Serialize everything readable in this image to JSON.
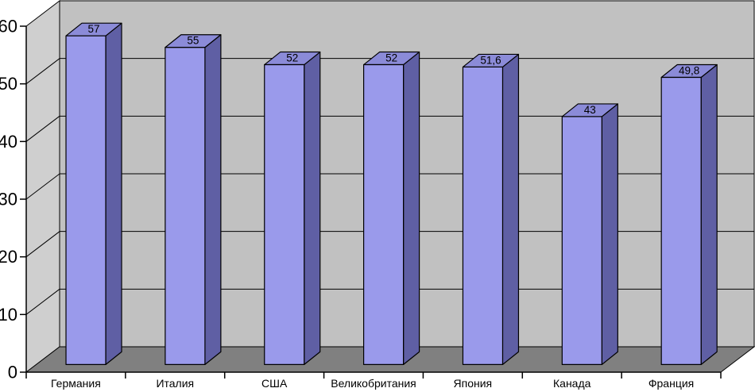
{
  "chart_data": {
    "type": "bar",
    "style": "3d-column",
    "title": "",
    "xlabel": "",
    "ylabel": "",
    "categories": [
      "Германия",
      "Италия",
      "США",
      "Великобритания",
      "Япония",
      "Канада",
      "Франция"
    ],
    "values": [
      57,
      55,
      52,
      52,
      51.6,
      43,
      49.8
    ],
    "value_labels": [
      "57",
      "55",
      "52",
      "52",
      "51,6",
      "43",
      "49,8"
    ],
    "ylim": [
      0,
      60
    ],
    "ytick_step": 10,
    "ytick_labels": [
      "0",
      "10",
      "20",
      "30",
      "40",
      "50",
      "60"
    ],
    "grid": true,
    "legend": false,
    "colors": {
      "bar_front": "#9a9aeb",
      "bar_top": "#8b8bd8",
      "bar_side": "#5f5fa4",
      "bar_border": "#000000",
      "wall_back": "#c1c1c1",
      "wall_side": "#cfcfcf",
      "floor": "#808080",
      "gridline": "#000000",
      "axis": "#000000",
      "background": "#ffffff",
      "label_text": "#000000"
    }
  }
}
